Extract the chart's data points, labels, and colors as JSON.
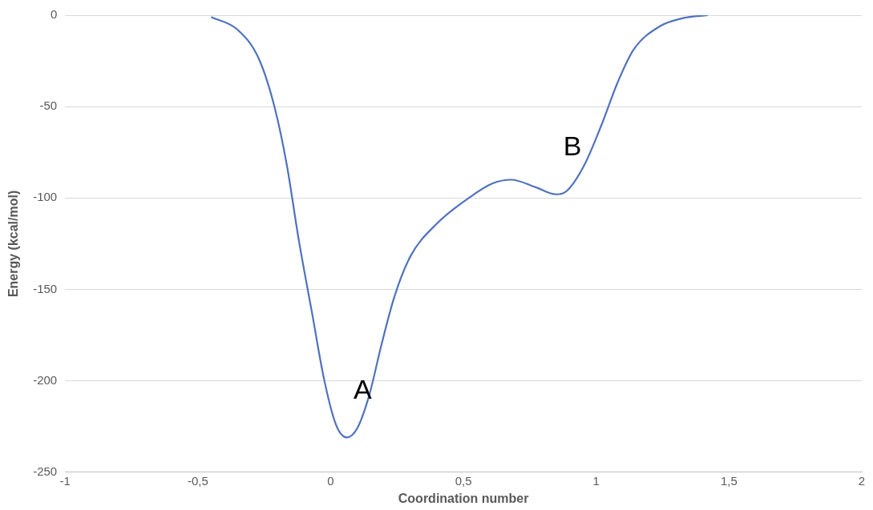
{
  "chart_data": {
    "type": "line",
    "xlabel": "Coordination number",
    "ylabel": "Energy (kcal/mol)",
    "x": [
      -0.45,
      -0.35,
      -0.27,
      -0.21,
      -0.165,
      -0.12,
      -0.07,
      -0.025,
      0.02,
      0.06,
      0.1,
      0.145,
      0.19,
      0.24,
      0.3,
      0.4,
      0.52,
      0.61,
      0.68,
      0.77,
      0.85,
      0.89,
      0.955,
      1.02,
      1.08,
      1.14,
      1.24,
      1.33,
      1.42
    ],
    "series": [
      {
        "color": "#4f72be",
        "values": [
          -1,
          -8,
          -24,
          -51,
          -82,
          -123,
          -163,
          -199,
          -224,
          -231,
          -226,
          -208,
          -181,
          -154,
          -132,
          -114,
          -100,
          -92,
          -90,
          -94,
          -98,
          -96,
          -82,
          -60,
          -37,
          -19,
          -6,
          -1.5,
          0
        ]
      }
    ],
    "xlim": [
      -1,
      2
    ],
    "xticks": [
      -1,
      {
        "value": -0.5,
        "label": "-0,5"
      },
      0,
      {
        "value": 0.5,
        "label": "0,5"
      },
      1,
      {
        "value": 1.5,
        "label": "1,5"
      },
      2
    ],
    "ylim": [
      -250,
      0
    ],
    "yticks": [
      -250,
      -200,
      -150,
      -100,
      -50,
      0
    ],
    "grid": "y",
    "marker": "none",
    "line_style": "solid",
    "annotations": [
      {
        "text": "A",
        "x": 0.06,
        "y": -231
      },
      {
        "text": "B",
        "x": 0.85,
        "y": -98
      }
    ]
  }
}
